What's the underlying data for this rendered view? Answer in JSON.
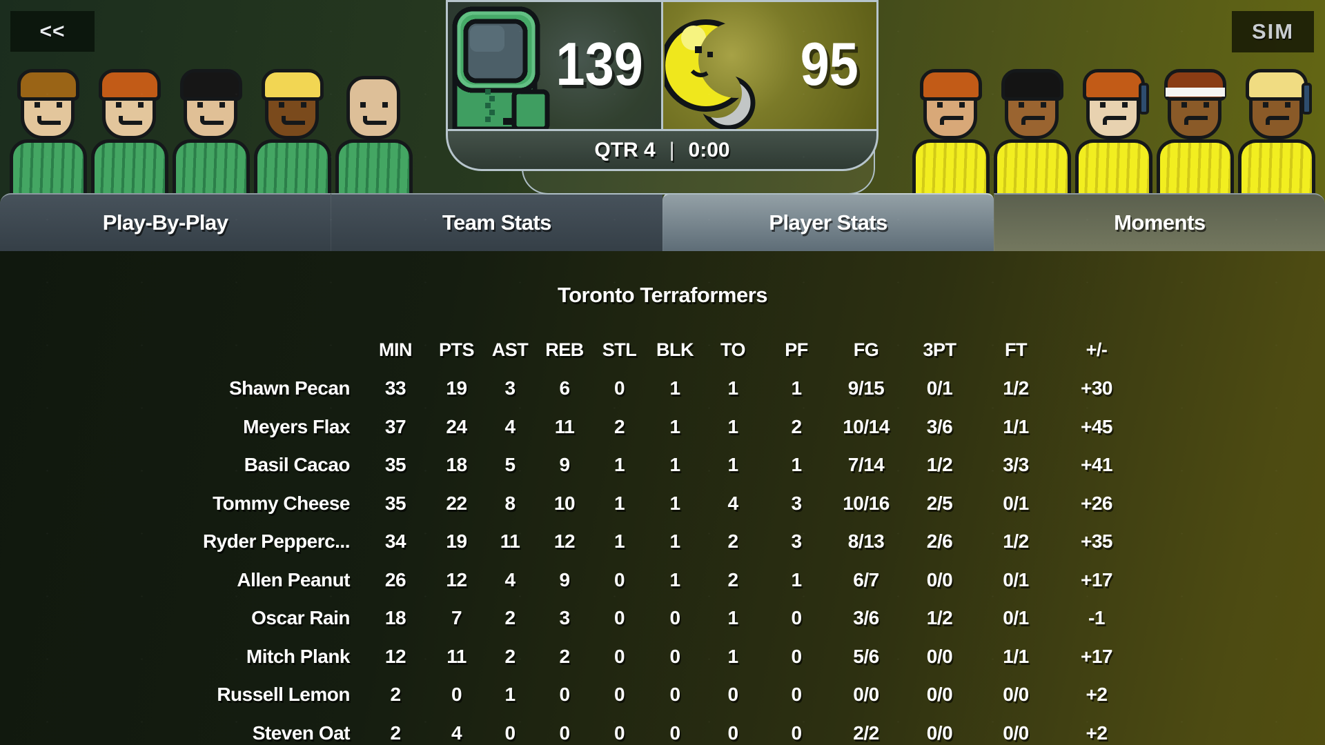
{
  "screen": {
    "back_label": "<<",
    "sim_label": "SIM"
  },
  "scoreboard": {
    "home_score": "139",
    "away_score": "95",
    "quarter": "QTR 4",
    "separator": "|",
    "time": "0:00",
    "home_logo": "green-astronaut",
    "away_logo": "yellow-crescent-moon",
    "border_color": "#b7c5cc"
  },
  "teams": {
    "home": {
      "jersey": "#44a663",
      "jersey_dark": "#2c7f4a",
      "mouth": "smile",
      "avatars": [
        {
          "skin": "#e3c69c",
          "hair": "#9a6416",
          "hairstyle": "side-swoop",
          "accessory": "none"
        },
        {
          "skin": "#e3c69c",
          "hair": "#c25b17",
          "hairstyle": "side-swoop",
          "accessory": "none"
        },
        {
          "skin": "#e0c096",
          "hair": "#161616",
          "hairstyle": "messy",
          "accessory": "none"
        },
        {
          "skin": "#7a4a1c",
          "hair": "#f2d653",
          "hairstyle": "round",
          "accessory": "none"
        },
        {
          "skin": "#ddbf98",
          "hair": null,
          "hairstyle": "bald",
          "accessory": "none"
        }
      ]
    },
    "away": {
      "jersey": "#f2ee20",
      "jersey_dark": "#d2ca18",
      "mouth": "frown",
      "avatars": [
        {
          "skin": "#d8a878",
          "hair": "#c25b17",
          "hairstyle": "side-swoop",
          "accessory": "none"
        },
        {
          "skin": "#9a6430",
          "hair": "#141414",
          "hairstyle": "side-swoop",
          "accessory": "none"
        },
        {
          "skin": "#e8d2b0",
          "hair": "#c25b17",
          "hairstyle": "messy",
          "accessory": "headphones"
        },
        {
          "skin": "#8a5a28",
          "hair": "#8a3c14",
          "hairstyle": "round",
          "accessory": "headband"
        },
        {
          "skin": "#8a5a28",
          "hair": "#f0dc82",
          "hairstyle": "round",
          "accessory": "headphones"
        }
      ]
    }
  },
  "tabs": [
    {
      "label": "Play-By-Play",
      "selected": false
    },
    {
      "label": "Team Stats",
      "selected": false
    },
    {
      "label": "Player Stats",
      "selected": true
    },
    {
      "label": "Moments",
      "selected": false
    }
  ],
  "stats": {
    "title": "Toronto Terraformers",
    "columns": [
      "MIN",
      "PTS",
      "AST",
      "REB",
      "STL",
      "BLK",
      "TO",
      "PF",
      "FG",
      "3PT",
      "FT",
      "+/-"
    ],
    "rows": [
      {
        "name": "Shawn Pecan",
        "values": [
          "33",
          "19",
          "3",
          "6",
          "0",
          "1",
          "1",
          "1",
          "9/15",
          "0/1",
          "1/2",
          "+30"
        ]
      },
      {
        "name": "Meyers Flax",
        "values": [
          "37",
          "24",
          "4",
          "11",
          "2",
          "1",
          "1",
          "2",
          "10/14",
          "3/6",
          "1/1",
          "+45"
        ]
      },
      {
        "name": "Basil Cacao",
        "values": [
          "35",
          "18",
          "5",
          "9",
          "1",
          "1",
          "1",
          "1",
          "7/14",
          "1/2",
          "3/3",
          "+41"
        ]
      },
      {
        "name": "Tommy Cheese",
        "values": [
          "35",
          "22",
          "8",
          "10",
          "1",
          "1",
          "4",
          "3",
          "10/16",
          "2/5",
          "0/1",
          "+26"
        ]
      },
      {
        "name": "Ryder Pepperc...",
        "values": [
          "34",
          "19",
          "11",
          "12",
          "1",
          "1",
          "2",
          "3",
          "8/13",
          "2/6",
          "1/2",
          "+35"
        ]
      },
      {
        "name": "Allen Peanut",
        "values": [
          "26",
          "12",
          "4",
          "9",
          "0",
          "1",
          "2",
          "1",
          "6/7",
          "0/0",
          "0/1",
          "+17"
        ]
      },
      {
        "name": "Oscar Rain",
        "values": [
          "18",
          "7",
          "2",
          "3",
          "0",
          "0",
          "1",
          "0",
          "3/6",
          "1/2",
          "0/1",
          "-1"
        ]
      },
      {
        "name": "Mitch Plank",
        "values": [
          "12",
          "11",
          "2",
          "2",
          "0",
          "0",
          "1",
          "0",
          "5/6",
          "0/0",
          "1/1",
          "+17"
        ]
      },
      {
        "name": "Russell Lemon",
        "values": [
          "2",
          "0",
          "1",
          "0",
          "0",
          "0",
          "0",
          "0",
          "0/0",
          "0/0",
          "0/0",
          "+2"
        ]
      },
      {
        "name": "Steven Oat",
        "values": [
          "2",
          "4",
          "0",
          "0",
          "0",
          "0",
          "0",
          "0",
          "2/2",
          "0/0",
          "0/0",
          "+2"
        ]
      }
    ]
  }
}
